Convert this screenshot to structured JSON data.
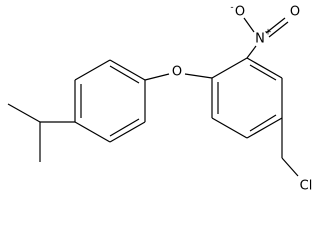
{
  "atoms": [
    {
      "label": "O"
    },
    {
      "label": "N",
      "charge": "+"
    },
    {
      "label": "O",
      "charge": "-"
    },
    {
      "label": "O"
    },
    {
      "label": "Cl"
    }
  ]
}
